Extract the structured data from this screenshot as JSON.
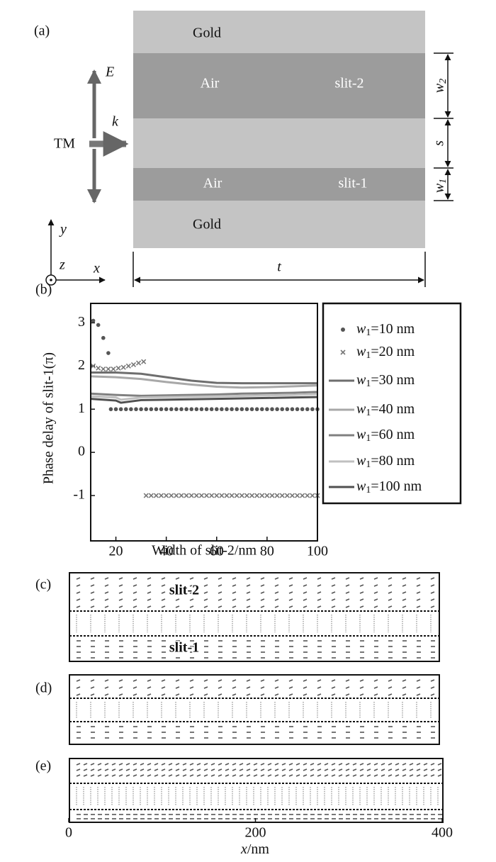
{
  "diagram": {
    "panel_label": "(a)",
    "gold_top": "Gold",
    "air_2": "Air",
    "slit_2": "slit-2",
    "air_1": "Air",
    "slit_1": "slit-1",
    "gold_bottom": "Gold",
    "field": "E",
    "wavevector": "k",
    "polarization": "TM",
    "w2": {
      "base": "w",
      "sub": "2"
    },
    "s": "s",
    "w1": {
      "base": "w",
      "sub": "1"
    },
    "axis_y": "y",
    "axis_z": "z",
    "axis_x": "x",
    "thickness": "t"
  },
  "chart_data": {
    "type": "line",
    "panel_label": "(b)",
    "xlabel": "Width of slit-2/nm",
    "ylabel": "Phase delay of slit-1(π)",
    "xlim": [
      10,
      100
    ],
    "ylim": [
      -2.05,
      3.45
    ],
    "xticks": [
      20,
      40,
      60,
      80,
      100
    ],
    "yticks": [
      -1,
      0,
      1,
      2,
      3
    ],
    "legend": "outside-right",
    "legend_prefix": {
      "base": "w",
      "sub": "1"
    },
    "series": [
      {
        "name": "=10 nm",
        "marker": "circle",
        "color": "#555555",
        "x": [
          11,
          13,
          15,
          17,
          18,
          20,
          22,
          24,
          26,
          28,
          30,
          32,
          34,
          36,
          38,
          40,
          42,
          44,
          46,
          48,
          50,
          52,
          54,
          56,
          58,
          60,
          62,
          64,
          66,
          68,
          70,
          72,
          74,
          76,
          78,
          80,
          82,
          84,
          86,
          88,
          90,
          92,
          94,
          96,
          98,
          100
        ],
        "values": [
          3.05,
          2.95,
          2.65,
          2.3,
          1,
          1,
          1,
          1,
          1,
          1,
          1,
          1,
          1,
          1,
          1,
          1,
          1,
          1,
          1,
          1,
          1,
          1,
          1,
          1,
          1,
          1,
          1,
          1,
          1,
          1,
          1,
          1,
          1,
          1,
          1,
          1,
          1,
          1,
          1,
          1,
          1,
          1,
          1,
          1,
          1,
          1
        ]
      },
      {
        "name": "=20 nm",
        "marker": "cross",
        "color": "#777777",
        "x": [
          11,
          13,
          15,
          17,
          19,
          21,
          23,
          25,
          27,
          29,
          31,
          32,
          34,
          36,
          38,
          40,
          42,
          44,
          46,
          48,
          50,
          52,
          54,
          56,
          58,
          60,
          62,
          64,
          66,
          68,
          70,
          72,
          74,
          76,
          78,
          80,
          82,
          84,
          86,
          88,
          90,
          92,
          94,
          96,
          98,
          100
        ],
        "values": [
          2.0,
          1.95,
          1.93,
          1.93,
          1.93,
          1.95,
          1.97,
          2.0,
          2.03,
          2.07,
          2.1,
          -1,
          -1,
          -1,
          -1,
          -1,
          -1,
          -1,
          -1,
          -1,
          -1,
          -1,
          -1,
          -1,
          -1,
          -1,
          -1,
          -1,
          -1,
          -1,
          -1,
          -1,
          -1,
          -1,
          -1,
          -1,
          -1,
          -1,
          -1,
          -1,
          -1,
          -1,
          -1,
          -1,
          -1,
          -1
        ]
      },
      {
        "name": "=30 nm",
        "color": "#6e6e6e",
        "x": [
          10,
          20,
          30,
          40,
          50,
          60,
          70,
          80,
          90,
          100
        ],
        "values": [
          1.85,
          1.85,
          1.82,
          1.74,
          1.66,
          1.61,
          1.6,
          1.6,
          1.6,
          1.6
        ]
      },
      {
        "name": "=40 nm",
        "color": "#a8a8a8",
        "x": [
          10,
          20,
          30,
          40,
          50,
          60,
          70,
          80,
          90,
          100
        ],
        "values": [
          1.76,
          1.74,
          1.7,
          1.63,
          1.57,
          1.52,
          1.5,
          1.51,
          1.53,
          1.55
        ]
      },
      {
        "name": "=60 nm",
        "color": "#808080",
        "x": [
          10,
          20,
          30,
          40,
          50,
          60,
          70,
          80,
          90,
          100
        ],
        "values": [
          1.36,
          1.33,
          1.31,
          1.32,
          1.33,
          1.34,
          1.36,
          1.37,
          1.38,
          1.4
        ]
      },
      {
        "name": "=80 nm",
        "color": "#c0c0c0",
        "x": [
          10,
          20,
          22,
          30,
          40,
          50,
          60,
          70,
          80,
          90,
          100
        ],
        "values": [
          1.3,
          1.27,
          1.22,
          1.27,
          1.28,
          1.29,
          1.3,
          1.31,
          1.32,
          1.33,
          1.35
        ]
      },
      {
        "name": "=100 nm",
        "color": "#505050",
        "x": [
          10,
          20,
          22,
          30,
          40,
          50,
          60,
          70,
          80,
          90,
          100
        ],
        "values": [
          1.24,
          1.2,
          1.15,
          1.21,
          1.22,
          1.23,
          1.24,
          1.25,
          1.26,
          1.27,
          1.28
        ]
      }
    ]
  },
  "field_plots": {
    "panels": [
      "(c)",
      "(d)",
      "(e)"
    ],
    "slit_2": "slit-2",
    "slit_1": "slit-1",
    "xlim": [
      0,
      400
    ],
    "xticks": [
      0,
      200,
      400
    ],
    "xlabel": {
      "var": "x",
      "unit": "/nm"
    }
  }
}
